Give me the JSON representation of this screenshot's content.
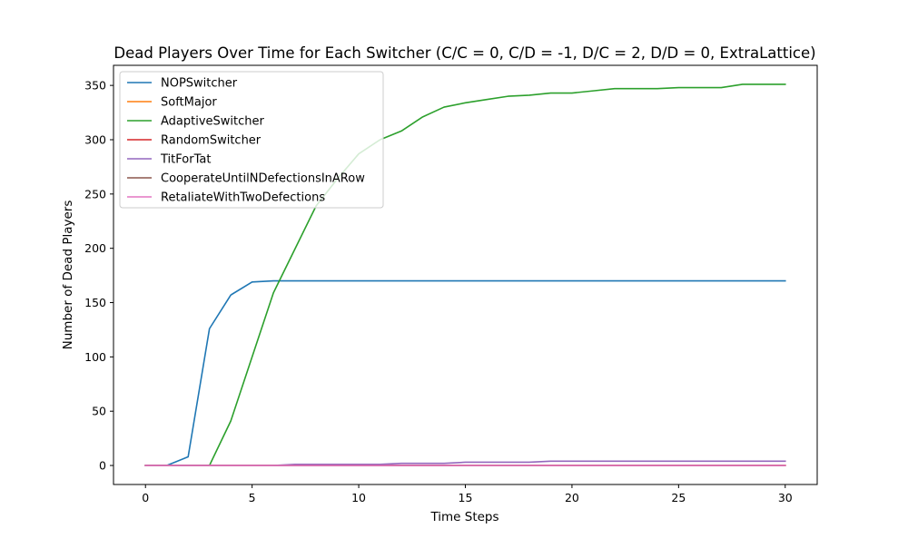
{
  "chart_data": {
    "type": "line",
    "title": "Dead Players Over Time for Each Switcher (C/C = 0, C/D = -1, D/C = 2, D/D = 0, ExtraLattice)",
    "xlabel": "Time Steps",
    "ylabel": "Number of Dead Players",
    "xlim": [
      -1.5,
      31.5
    ],
    "ylim": [
      -17.5,
      368.5
    ],
    "xticks": [
      0,
      5,
      10,
      15,
      20,
      25,
      30
    ],
    "yticks": [
      0,
      50,
      100,
      150,
      200,
      250,
      300,
      350
    ],
    "grid": false,
    "legend_position": "top-left",
    "x": [
      0,
      1,
      2,
      3,
      4,
      5,
      6,
      7,
      8,
      9,
      10,
      11,
      12,
      13,
      14,
      15,
      16,
      17,
      18,
      19,
      20,
      21,
      22,
      23,
      24,
      25,
      26,
      27,
      28,
      29,
      30
    ],
    "series": [
      {
        "name": "NOPSwitcher",
        "color": "#1f77b4",
        "values": [
          0,
          0,
          8,
          126,
          157,
          169,
          170,
          170,
          170,
          170,
          170,
          170,
          170,
          170,
          170,
          170,
          170,
          170,
          170,
          170,
          170,
          170,
          170,
          170,
          170,
          170,
          170,
          170,
          170,
          170,
          170
        ]
      },
      {
        "name": "SoftMajor",
        "color": "#ff7f0e",
        "values": [
          0,
          0,
          0,
          0,
          0,
          0,
          0,
          0,
          0,
          0,
          0,
          0,
          0,
          0,
          0,
          0,
          0,
          0,
          0,
          0,
          0,
          0,
          0,
          0,
          0,
          0,
          0,
          0,
          0,
          0,
          0
        ]
      },
      {
        "name": "AdaptiveSwitcher",
        "color": "#2ca02c",
        "values": [
          0,
          0,
          0,
          0,
          41,
          100,
          159,
          199,
          239,
          264,
          287,
          300,
          308,
          321,
          330,
          334,
          337,
          340,
          341,
          343,
          343,
          345,
          347,
          347,
          347,
          348,
          348,
          348,
          351,
          351,
          351
        ]
      },
      {
        "name": "RandomSwitcher",
        "color": "#d62728",
        "values": [
          0,
          0,
          0,
          0,
          0,
          0,
          0,
          0,
          0,
          0,
          0,
          0,
          0,
          0,
          0,
          0,
          0,
          0,
          0,
          0,
          0,
          0,
          0,
          0,
          0,
          0,
          0,
          0,
          0,
          0,
          0
        ]
      },
      {
        "name": "TitForTat",
        "color": "#9467bd",
        "values": [
          0,
          0,
          0,
          0,
          0,
          0,
          0,
          1,
          1,
          1,
          1,
          1,
          2,
          2,
          2,
          3,
          3,
          3,
          3,
          4,
          4,
          4,
          4,
          4,
          4,
          4,
          4,
          4,
          4,
          4,
          4
        ]
      },
      {
        "name": "CooperateUntilNDefectionsInARow",
        "color": "#8c564b",
        "values": [
          0,
          0,
          0,
          0,
          0,
          0,
          0,
          0,
          0,
          0,
          0,
          0,
          0,
          0,
          0,
          0,
          0,
          0,
          0,
          0,
          0,
          0,
          0,
          0,
          0,
          0,
          0,
          0,
          0,
          0,
          0
        ]
      },
      {
        "name": "RetaliateWithTwoDefections",
        "color": "#e377c2",
        "values": [
          0,
          0,
          0,
          0,
          0,
          0,
          0,
          0,
          0,
          0,
          0,
          0,
          0,
          0,
          0,
          0,
          0,
          0,
          0,
          0,
          0,
          0,
          0,
          0,
          0,
          0,
          0,
          0,
          0,
          0,
          0
        ]
      }
    ]
  }
}
